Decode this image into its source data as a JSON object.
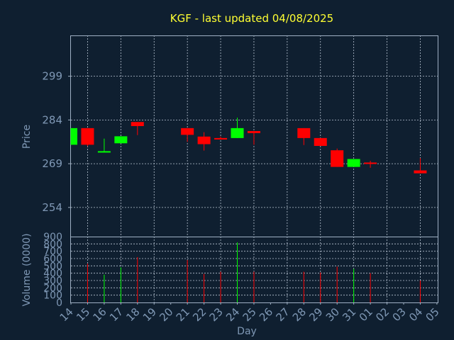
{
  "chart_data": {
    "type": "candlestick",
    "title": "KGF - last updated 04/08/2025",
    "xlabel": "Day",
    "price_panel": {
      "ylabel": "Price",
      "yticks": [
        254,
        269,
        284,
        299
      ],
      "ylim": [
        244,
        313
      ],
      "grid": true
    },
    "volume_panel": {
      "ylabel": "Volume (0000)",
      "yticks": [
        0,
        100,
        200,
        300,
        400,
        500,
        600,
        700,
        800,
        900
      ],
      "ylim": [
        0,
        900
      ],
      "grid": true
    },
    "categories": [
      "14",
      "15",
      "16",
      "17",
      "18",
      "19",
      "20",
      "21",
      "22",
      "23",
      "24",
      "25",
      "26",
      "27",
      "28",
      "29",
      "30",
      "31",
      "01",
      "02",
      "03",
      "04",
      "05"
    ],
    "colors": {
      "up": "#00ff00",
      "down": "#ff0000"
    },
    "candles": [
      {
        "x": "14",
        "open": 275.5,
        "close": 281.2,
        "high": 281.2,
        "low": 275.5,
        "volume": 0
      },
      {
        "x": "15",
        "open": 281.2,
        "close": 275.5,
        "high": 281.2,
        "low": 275.0,
        "volume": 530
      },
      {
        "x": "16",
        "open": 272.9,
        "close": 273.3,
        "high": 277.6,
        "low": 272.9,
        "volume": 380
      },
      {
        "x": "17",
        "open": 276.0,
        "close": 278.4,
        "high": 278.4,
        "low": 276.0,
        "volume": 480
      },
      {
        "x": "18",
        "open": 283.3,
        "close": 281.9,
        "high": 283.3,
        "low": 278.8,
        "volume": 620
      },
      {
        "x": "21",
        "open": 281.2,
        "close": 278.9,
        "high": 281.2,
        "low": 276.5,
        "volume": 580
      },
      {
        "x": "22",
        "open": 278.3,
        "close": 275.7,
        "high": 279.8,
        "low": 273.5,
        "volume": 390
      },
      {
        "x": "23",
        "open": 277.8,
        "close": 277.3,
        "high": 278.3,
        "low": 277.3,
        "volume": 420
      },
      {
        "x": "24",
        "open": 277.8,
        "close": 281.2,
        "high": 284.8,
        "low": 277.8,
        "volume": 820
      },
      {
        "x": "25",
        "open": 280.2,
        "close": 279.5,
        "high": 280.2,
        "low": 275.5,
        "volume": 420
      },
      {
        "x": "28",
        "open": 281.2,
        "close": 277.8,
        "high": 281.2,
        "low": 275.4,
        "volume": 420
      },
      {
        "x": "29",
        "open": 277.8,
        "close": 275.1,
        "high": 277.8,
        "low": 275.1,
        "volume": 410
      },
      {
        "x": "30",
        "open": 273.6,
        "close": 267.9,
        "high": 274.2,
        "low": 267.9,
        "volume": 490
      },
      {
        "x": "31",
        "open": 267.9,
        "close": 270.6,
        "high": 270.6,
        "low": 267.9,
        "volume": 460
      },
      {
        "x": "01",
        "open": 269.4,
        "close": 269.0,
        "high": 270.0,
        "low": 267.6,
        "volume": 400
      },
      {
        "x": "04",
        "open": 266.7,
        "close": 265.7,
        "high": 270.9,
        "low": 265.7,
        "volume": 300
      }
    ]
  }
}
